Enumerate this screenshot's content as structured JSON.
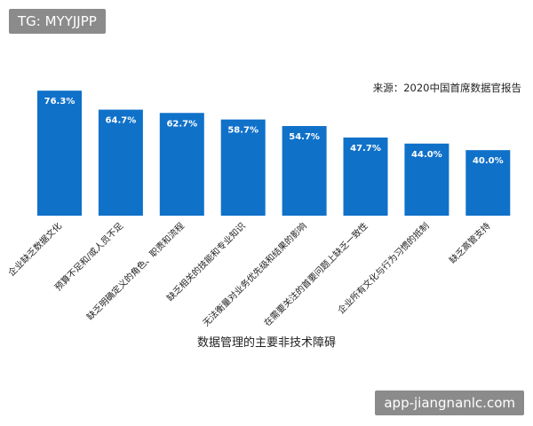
{
  "watermarks": {
    "top_left": "TG: MYYJJPP",
    "bottom_right": "app-jiangnanlc.com"
  },
  "chart_data": {
    "type": "bar",
    "title": "",
    "source": "来源：2020中国首席数据官报告",
    "xlabel": "数据管理的主要非技术障碍",
    "ylabel": "",
    "ylim": [
      0,
      100
    ],
    "grid": false,
    "categories": [
      "企业缺乏数据文化",
      "预算不足和/或人员不足",
      "缺乏明确定义的角色、职责和流程",
      "缺乏相关的技能和专业知识",
      "无法衡量对业务优先级和结果的影响",
      "在需要关注的首要问题上缺乏一致性",
      "企业所有文化与行为习惯的抵制",
      "缺乏高管支持"
    ],
    "values": [
      76.3,
      64.7,
      62.7,
      58.7,
      54.7,
      47.7,
      44.0,
      40.0
    ],
    "value_labels": [
      "76.3%",
      "64.7%",
      "62.7%",
      "58.7%",
      "54.7%",
      "47.7%",
      "44.0%",
      "40.0%"
    ],
    "bar_color": "#1071c9"
  }
}
